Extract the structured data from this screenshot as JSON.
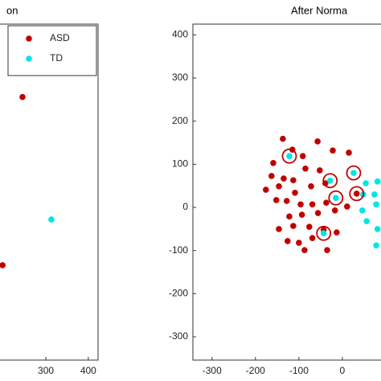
{
  "chart_data": [
    {
      "type": "scatter",
      "title": "on",
      "xlim": [
        192,
        423
      ],
      "xticks": [
        300,
        400
      ],
      "ylim": [
        -354,
        425
      ],
      "legend": "upper right",
      "series": [
        {
          "name": "ASD",
          "color": "#c00000",
          "x": [
            245,
            198
          ],
          "y": [
            256,
            -134
          ]
        },
        {
          "name": "TD",
          "color": "#00e5e5",
          "x": [
            313
          ],
          "y": [
            -28
          ]
        }
      ]
    },
    {
      "type": "scatter",
      "title": "After Norma",
      "xlim": [
        -344,
        89
      ],
      "xticks": [
        -300,
        -200,
        -100,
        0
      ],
      "ylim": [
        -354,
        425
      ],
      "yticks": [
        -300,
        -200,
        -100,
        0,
        100,
        200,
        300,
        400
      ],
      "series": [
        {
          "name": "ASD",
          "color": "#c00000",
          "x": [
            -137,
            -115,
            -159,
            -91,
            -57,
            -22,
            15,
            -85,
            -52,
            -135,
            -113,
            -163,
            -176,
            -146,
            -109,
            -72,
            -39,
            -152,
            -128,
            -96,
            -69,
            -37,
            33,
            -122,
            -93,
            -56,
            -17,
            11,
            -146,
            -113,
            -76,
            -43,
            -13,
            -126,
            -69,
            -100,
            -35,
            -87
          ],
          "y": [
            159,
            134,
            103,
            119,
            153,
            132,
            127,
            90,
            86,
            67,
            63,
            73,
            41,
            49,
            34,
            49,
            56,
            17,
            15,
            7,
            7,
            11,
            32,
            -21,
            -17,
            -13,
            -7,
            2,
            -50,
            -43,
            -45,
            -52,
            -58,
            -78,
            -71,
            -82,
            -99,
            -99
          ]
        },
        {
          "name": "TD",
          "color": "#00e5e5",
          "x": [
            -122,
            -28,
            26,
            -15,
            -43,
            54,
            48,
            74,
            46,
            78,
            81,
            56,
            81,
            78
          ],
          "y": [
            119,
            62,
            80,
            22,
            -60,
            56,
            30,
            30,
            -7,
            7,
            60,
            -32,
            -50,
            -88
          ]
        }
      ],
      "rings": {
        "color": "#c00000",
        "x": [
          -122,
          -28,
          26,
          -15,
          -43,
          33
        ],
        "y": [
          119,
          62,
          80,
          22,
          -60,
          32
        ]
      }
    }
  ]
}
